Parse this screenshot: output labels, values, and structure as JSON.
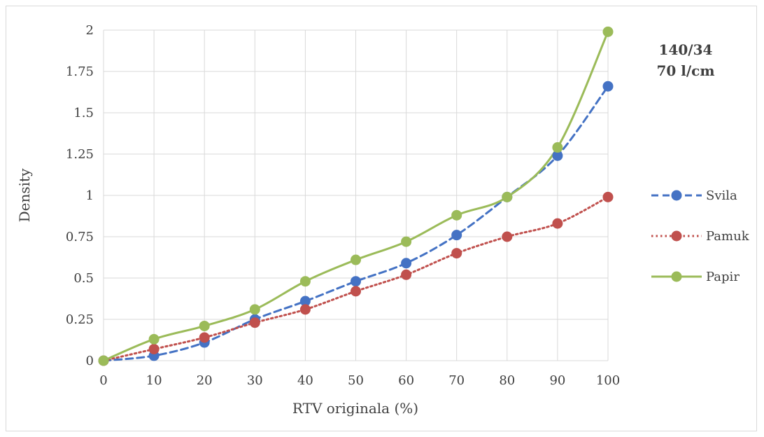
{
  "chart_data": {
    "type": "line",
    "x": [
      0,
      10,
      20,
      30,
      40,
      50,
      60,
      70,
      80,
      90,
      100
    ],
    "xlabel": "RTV originala (%)",
    "ylabel": "Density",
    "xlim": [
      0,
      100
    ],
    "ylim": [
      0,
      2
    ],
    "x_ticks": [
      "0",
      "10",
      "20",
      "30",
      "40",
      "50",
      "60",
      "70",
      "80",
      "90",
      "100"
    ],
    "y_ticks": [
      "0",
      "0.25",
      "0.5",
      "0.75",
      "1",
      "1.25",
      "1.5",
      "1.75",
      "2"
    ],
    "grid": "vertical and horizontal major gridlines",
    "legend_position": "right",
    "annotation": [
      "140/34",
      "70 l/cm"
    ],
    "series": [
      {
        "name": "Svila",
        "values": [
          0,
          0.03,
          0.11,
          0.25,
          0.36,
          0.48,
          0.59,
          0.76,
          0.99,
          1.24,
          1.66
        ],
        "color": "#4472C4",
        "line_style": "dashed"
      },
      {
        "name": "Pamuk",
        "values": [
          0,
          0.07,
          0.14,
          0.23,
          0.31,
          0.42,
          0.52,
          0.65,
          0.75,
          0.83,
          0.99
        ],
        "color": "#C0504D",
        "line_style": "dotted"
      },
      {
        "name": "Papir",
        "values": [
          0,
          0.13,
          0.21,
          0.31,
          0.48,
          0.61,
          0.72,
          0.88,
          0.99,
          1.29,
          1.99
        ],
        "color": "#9BBB59",
        "line_style": "solid"
      }
    ]
  }
}
